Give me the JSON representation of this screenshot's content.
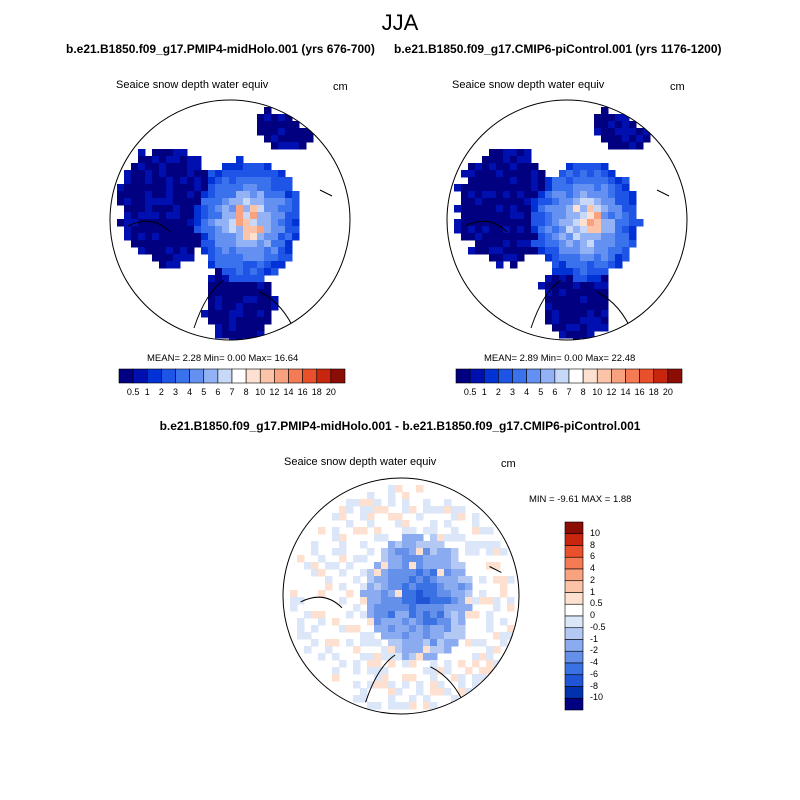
{
  "figure": {
    "main_title": "JJA",
    "left_case_title": "b.e21.B1850.f09_g17.PMIP4-midHolo.001 (yrs 676-700)",
    "right_case_title": "b.e21.B1850.f09_g17.CMIP6-piControl.001 (yrs 1176-1200)",
    "diff_title": "b.e21.B1850.f09_g17.PMIP4-midHolo.001 - b.e21.B1850.f09_g17.CMIP6-piControl.001"
  },
  "chart_data": [
    {
      "type": "heatmap",
      "projection": "north polar stereographic",
      "title": "Seaice snow depth water equiv",
      "units": "cm",
      "stats_text": "MEAN=   2.28  Min=    0.00  Max=  16.64",
      "mean": 2.28,
      "min": 0.0,
      "max": 16.64,
      "colorbar_ticks": [
        "0.5",
        "1",
        "2",
        "3",
        "4",
        "5",
        "6",
        "7",
        "8",
        "10",
        "12",
        "14",
        "16",
        "18",
        "20"
      ],
      "colorbar_colors": [
        "#000080",
        "#0010b0",
        "#0032d6",
        "#1f55e6",
        "#3a72ee",
        "#6490f2",
        "#93b2f5",
        "#c8d8f8",
        "#ffffff",
        "#fde0cf",
        "#fbc3a8",
        "#f8a27f",
        "#f47b53",
        "#e9502b",
        "#c8260f",
        "#8c0d05"
      ]
    },
    {
      "type": "heatmap",
      "projection": "north polar stereographic",
      "title": "Seaice snow depth water equiv",
      "units": "cm",
      "stats_text": "MEAN=   2.89  Min=    0.00  Max=  22.48",
      "mean": 2.89,
      "min": 0.0,
      "max": 22.48,
      "colorbar_ticks": [
        "0.5",
        "1",
        "2",
        "3",
        "4",
        "5",
        "6",
        "7",
        "8",
        "10",
        "12",
        "14",
        "16",
        "18",
        "20"
      ],
      "colorbar_colors": [
        "#000080",
        "#0010b0",
        "#0032d6",
        "#1f55e6",
        "#3a72ee",
        "#6490f2",
        "#93b2f5",
        "#c8d8f8",
        "#ffffff",
        "#fde0cf",
        "#fbc3a8",
        "#f8a27f",
        "#f47b53",
        "#e9502b",
        "#c8260f",
        "#8c0d05"
      ]
    },
    {
      "type": "heatmap",
      "projection": "north polar stereographic",
      "title": "Seaice snow depth water equiv",
      "units": "cm",
      "stats_text": "MIN =  -9.61 MAX =   1.88",
      "min": -9.61,
      "max": 1.88,
      "colorbar_ticks": [
        "10",
        "8",
        "6",
        "4",
        "2",
        "1",
        "0.5",
        "0",
        "-0.5",
        "-1",
        "-2",
        "-4",
        "-6",
        "-8",
        "-10"
      ],
      "colorbar_colors": [
        "#8c0d05",
        "#c8260f",
        "#e9502b",
        "#f47b53",
        "#f8a27f",
        "#fbc3a8",
        "#fde0cf",
        "#ffffff",
        "#dbe6f9",
        "#b3c9f4",
        "#8aabef",
        "#6490ea",
        "#3a72e4",
        "#1f55d6",
        "#0032b0",
        "#000080"
      ]
    }
  ]
}
